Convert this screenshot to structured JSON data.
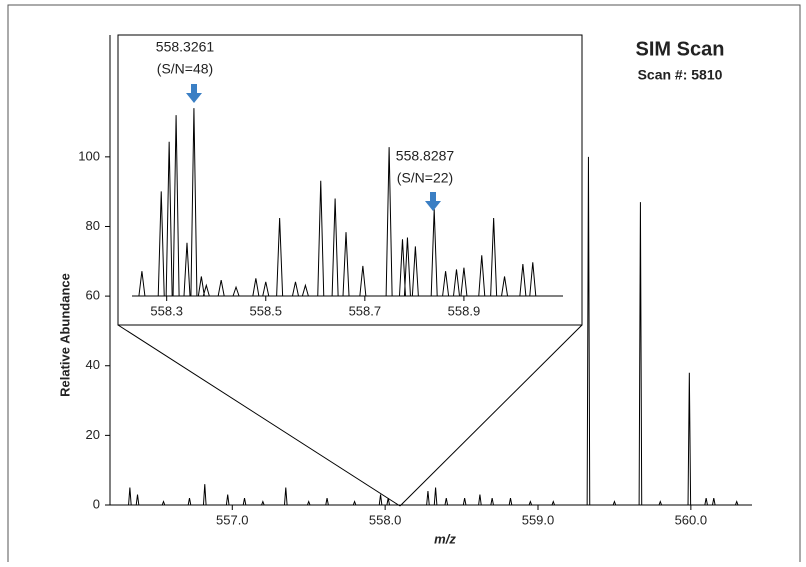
{
  "chart_data": [
    {
      "type": "spectrum",
      "title": "SIM Scan",
      "subtitle": "Scan #: 5810",
      "x_label": "m/z",
      "y_label": "Relative Abundance",
      "color": "#000000",
      "xlim": [
        556.2,
        560.4
      ],
      "xticks": [
        {
          "value": 557,
          "label": "557.0"
        },
        {
          "value": 558,
          "label": "558.0"
        },
        {
          "value": 559,
          "label": "559.0"
        },
        {
          "value": 560,
          "label": "560.0"
        }
      ],
      "ylim": [
        0,
        135
      ],
      "yticks": [
        0,
        20,
        40,
        60,
        80,
        100
      ],
      "x": [
        556.33,
        556.38,
        556.55,
        556.72,
        556.82,
        556.97,
        557.08,
        557.2,
        557.35,
        557.5,
        557.62,
        557.8,
        557.97,
        558.02,
        558.28,
        558.33,
        558.4,
        558.52,
        558.62,
        558.7,
        558.82,
        558.95,
        559.1,
        559.33,
        559.5,
        559.67,
        559.8,
        559.99,
        560.1,
        560.15,
        560.3
      ],
      "values": [
        5,
        3,
        1,
        2,
        6,
        3,
        2,
        1,
        5,
        1,
        2,
        1,
        3,
        2,
        4,
        5,
        2,
        2,
        3,
        2,
        2,
        1,
        1,
        100,
        1,
        87,
        1,
        38,
        2,
        2,
        1
      ]
    },
    {
      "type": "spectrum",
      "color": "#000000",
      "xlim": [
        558.23,
        559.1
      ],
      "xticks": [
        558.3,
        558.5,
        558.7,
        558.9
      ],
      "ylim": [
        0,
        110
      ],
      "annotations": [
        [
          "558.3261",
          "(S/N=48)"
        ],
        [
          "558.8287",
          "(S/N=22)"
        ]
      ],
      "x": [
        558.25,
        558.289,
        558.305,
        558.319,
        558.341,
        558.355,
        558.37,
        558.38,
        558.41,
        558.44,
        558.48,
        558.5,
        558.528,
        558.56,
        558.58,
        558.611,
        558.64,
        558.662,
        558.696,
        558.749,
        558.776,
        558.786,
        558.802,
        558.84,
        558.863,
        558.885,
        558.9,
        558.936,
        558.96,
        558.982,
        559.019,
        559.039
      ],
      "values": [
        14,
        59,
        87,
        102,
        30,
        106,
        11,
        6,
        9,
        5,
        10,
        8,
        44,
        8,
        6,
        65,
        55,
        36,
        17,
        84,
        32,
        33,
        28,
        49,
        14,
        15,
        16,
        23,
        44,
        11,
        18,
        19
      ]
    }
  ]
}
